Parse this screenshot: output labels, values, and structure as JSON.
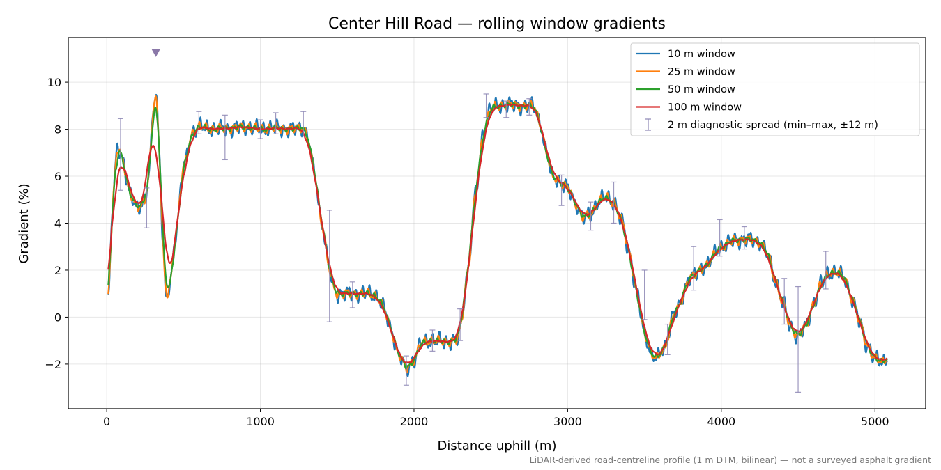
{
  "chart_data": {
    "type": "line",
    "title": "Center Hill Road — rolling window gradients",
    "xlabel": "Distance uphill (m)",
    "ylabel": "Gradient (%)",
    "xlim": [
      -250,
      5330
    ],
    "ylim": [
      -3.9,
      11.9
    ],
    "x_ticks": [
      0,
      1000,
      2000,
      3000,
      4000,
      5000
    ],
    "x_tick_labels": [
      "0",
      "1000",
      "2000",
      "3000",
      "4000",
      "5000"
    ],
    "y_ticks": [
      -2,
      0,
      2,
      4,
      6,
      8,
      10
    ],
    "y_tick_labels": [
      "−2",
      "0",
      "2",
      "4",
      "6",
      "8",
      "10"
    ],
    "grid": true,
    "legend_position": "top-right",
    "colors": {
      "w10": "#1f77b4",
      "w25": "#ff7f0e",
      "w50": "#2ca02c",
      "w100": "#d62728",
      "spread": "#8c86b4",
      "marker": "#8a78a8"
    },
    "base_profile": {
      "x": [
        10,
        40,
        70,
        100,
        150,
        200,
        250,
        280,
        300,
        320,
        340,
        365,
        385,
        410,
        450,
        500,
        560,
        600,
        700,
        800,
        900,
        1000,
        1100,
        1200,
        1280,
        1310,
        1350,
        1400,
        1450,
        1480,
        1500,
        1550,
        1600,
        1700,
        1760,
        1800,
        1850,
        1900,
        1950,
        2000,
        2050,
        2100,
        2200,
        2280,
        2300,
        2350,
        2400,
        2450,
        2500,
        2600,
        2700,
        2780,
        2820,
        2860,
        2900,
        3000,
        3050,
        3100,
        3150,
        3200,
        3250,
        3300,
        3350,
        3400,
        3450,
        3500,
        3550,
        3580,
        3620,
        3700,
        3800,
        3900,
        4000,
        4100,
        4200,
        4250,
        4300,
        4350,
        4400,
        4450,
        4500,
        4550,
        4600,
        4650,
        4700,
        4750,
        4800,
        4850,
        4900,
        4950,
        5000,
        5050,
        5080
      ],
      "y": [
        0.6,
        5.0,
        7.4,
        6.8,
        5.2,
        4.7,
        4.9,
        6.3,
        8.8,
        9.8,
        7.5,
        3.2,
        0.7,
        1.3,
        3.6,
        6.4,
        7.9,
        8.1,
        8.0,
        8.05,
        8.1,
        8.0,
        8.05,
        8.0,
        8.1,
        7.6,
        6.2,
        4.0,
        2.0,
        1.2,
        1.0,
        1.0,
        1.0,
        1.0,
        0.9,
        0.4,
        -0.5,
        -1.6,
        -2.2,
        -1.8,
        -1.1,
        -1.0,
        -1.05,
        -1.0,
        -0.5,
        2.0,
        5.2,
        7.8,
        8.9,
        9.05,
        9.0,
        9.0,
        8.3,
        7.0,
        6.0,
        5.5,
        4.9,
        4.2,
        4.4,
        4.9,
        5.1,
        4.9,
        4.1,
        2.8,
        1.0,
        -0.7,
        -1.6,
        -1.8,
        -1.4,
        0.2,
        1.7,
        2.2,
        3.0,
        3.3,
        3.3,
        3.2,
        2.7,
        1.6,
        0.6,
        -0.4,
        -0.8,
        -0.4,
        0.6,
        1.4,
        1.9,
        1.9,
        1.7,
        0.8,
        -0.2,
        -1.2,
        -1.8,
        -1.9,
        -1.7
      ]
    },
    "series": [
      {
        "name": "10 m window",
        "color": "#1f77b4",
        "window_m": 10,
        "noise": 0.22
      },
      {
        "name": "25 m window",
        "color": "#ff7f0e",
        "window_m": 25,
        "noise": 0.13
      },
      {
        "name": "50 m window",
        "color": "#2ca02c",
        "window_m": 50,
        "noise": 0.07
      },
      {
        "name": "100 m window",
        "color": "#d62728",
        "window_m": 100,
        "noise": 0.02
      }
    ],
    "spread": {
      "name": "2 m diagnostic spread (min–max, ±12 m)",
      "x": [
        90,
        260,
        600,
        770,
        1000,
        1100,
        1280,
        1450,
        1600,
        1950,
        2120,
        2300,
        2470,
        2600,
        2750,
        2960,
        3150,
        3300,
        3500,
        3650,
        3820,
        3990,
        4150,
        4410,
        4500,
        4680
      ],
      "y": [
        6.4,
        4.6,
        8.2,
        7.7,
        8.0,
        8.2,
        8.0,
        2.2,
        0.95,
        -2.3,
        -1.0,
        -0.3,
        9.0,
        8.8,
        8.9,
        5.4,
        4.4,
        5.0,
        0.85,
        -1.0,
        1.8,
        3.35,
        3.3,
        0.5,
        -0.9,
        2.0
      ],
      "ymin": [
        5.4,
        3.8,
        7.8,
        6.7,
        7.6,
        7.8,
        7.7,
        -0.2,
        0.4,
        -2.9,
        -1.45,
        -1.0,
        8.5,
        8.5,
        8.6,
        4.75,
        3.7,
        4.0,
        -0.1,
        -1.6,
        1.15,
        2.6,
        2.9,
        -0.3,
        -3.2,
        1.2
      ],
      "ymax": [
        8.45,
        5.5,
        8.75,
        8.6,
        8.4,
        8.7,
        8.75,
        4.55,
        1.5,
        -1.65,
        -0.55,
        0.35,
        9.5,
        9.2,
        9.3,
        6.05,
        4.9,
        5.75,
        2.0,
        -0.3,
        3.0,
        4.15,
        3.85,
        1.65,
        1.3,
        2.8
      ]
    },
    "peak_marker": {
      "x": 320,
      "y": 11.25,
      "shape": "triangle-down"
    },
    "footnote": "LiDAR-derived road-centreline profile (1 m DTM, bilinear) — not a surveyed asphalt gradient"
  }
}
